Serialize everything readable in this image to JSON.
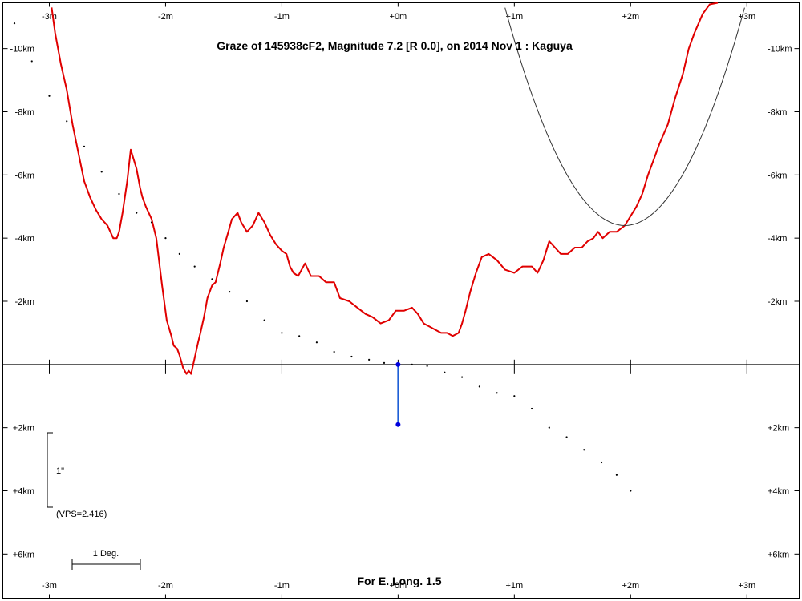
{
  "chart_data": {
    "type": "line",
    "title": "Graze of  145938cF2,  Magnitude 7.2 [R 0.0],  on 2014 Nov  1  :  Kaguya",
    "footer": "For E. Long. 1.5",
    "x_unit": "minutes",
    "y_unit": "km",
    "xlim": [
      -3.4,
      3.45
    ],
    "ylim": [
      -11.45,
      7.4
    ],
    "x_ticks": [
      {
        "value": -3,
        "label": "-3m"
      },
      {
        "value": -2,
        "label": "-2m"
      },
      {
        "value": -1,
        "label": "-1m"
      },
      {
        "value": 0,
        "label": "+0m"
      },
      {
        "value": 1,
        "label": "+1m"
      },
      {
        "value": 2,
        "label": "+2m"
      },
      {
        "value": 3,
        "label": "+3m"
      }
    ],
    "y_ticks": [
      {
        "value": -10,
        "label": "-10km"
      },
      {
        "value": -8,
        "label": "-8km"
      },
      {
        "value": -6,
        "label": "-6km"
      },
      {
        "value": -4,
        "label": "-4km"
      },
      {
        "value": -2,
        "label": "-2km"
      },
      {
        "value": 2,
        "label": "+2km"
      },
      {
        "value": 4,
        "label": "+4km"
      },
      {
        "value": 6,
        "label": "+6km"
      }
    ],
    "scale_bar_vertical_label": "1\"",
    "vps_label": "(VPS=2.416)",
    "scale_bar_horizontal_label": "1 Deg.",
    "series": [
      {
        "kind": "limb-profile",
        "color": "#e00000",
        "x": [
          -2.98,
          -2.95,
          -2.9,
          -2.85,
          -2.8,
          -2.75,
          -2.7,
          -2.65,
          -2.6,
          -2.55,
          -2.5,
          -2.45,
          -2.42,
          -2.4,
          -2.37,
          -2.33,
          -2.3,
          -2.25,
          -2.22,
          -2.2,
          -2.17,
          -2.12,
          -2.08,
          -2.03,
          -1.99,
          -1.95,
          -1.93,
          -1.9,
          -1.88,
          -1.85,
          -1.82,
          -1.8,
          -1.78,
          -1.75,
          -1.72,
          -1.7,
          -1.67,
          -1.64,
          -1.6,
          -1.57,
          -1.53,
          -1.5,
          -1.46,
          -1.43,
          -1.38,
          -1.35,
          -1.3,
          -1.25,
          -1.2,
          -1.15,
          -1.1,
          -1.05,
          -1.0,
          -0.96,
          -0.93,
          -0.9,
          -0.86,
          -0.8,
          -0.75,
          -0.68,
          -0.62,
          -0.55,
          -0.5,
          -0.42,
          -0.35,
          -0.28,
          -0.22,
          -0.15,
          -0.08,
          -0.02,
          0.05,
          0.12,
          0.17,
          0.22,
          0.27,
          0.32,
          0.37,
          0.42,
          0.47,
          0.52,
          0.55,
          0.58,
          0.62,
          0.67,
          0.72,
          0.78,
          0.85,
          0.92,
          1.0,
          1.07,
          1.15,
          1.2,
          1.25,
          1.3,
          1.35,
          1.4,
          1.46,
          1.52,
          1.58,
          1.63,
          1.68,
          1.72,
          1.76,
          1.82,
          1.88,
          1.95,
          2.05,
          2.1,
          2.15,
          2.2,
          2.25,
          2.32,
          2.38,
          2.45,
          2.5,
          2.55,
          2.62,
          2.68,
          2.75
        ],
        "y": [
          -11.3,
          -10.5,
          -9.5,
          -8.7,
          -7.6,
          -6.7,
          -5.8,
          -5.3,
          -4.9,
          -4.6,
          -4.4,
          -4.0,
          -4.0,
          -4.2,
          -4.8,
          -5.8,
          -6.8,
          -6.2,
          -5.6,
          -5.3,
          -5.0,
          -4.6,
          -4.0,
          -2.5,
          -1.4,
          -0.9,
          -0.6,
          -0.5,
          -0.3,
          0.1,
          0.3,
          0.2,
          0.3,
          -0.2,
          -0.7,
          -1.0,
          -1.5,
          -2.1,
          -2.5,
          -2.6,
          -3.2,
          -3.7,
          -4.2,
          -4.6,
          -4.8,
          -4.5,
          -4.2,
          -4.4,
          -4.8,
          -4.5,
          -4.1,
          -3.8,
          -3.6,
          -3.5,
          -3.1,
          -2.9,
          -2.8,
          -3.2,
          -2.8,
          -2.8,
          -2.6,
          -2.6,
          -2.1,
          -2.0,
          -1.8,
          -1.6,
          -1.5,
          -1.3,
          -1.4,
          -1.7,
          -1.7,
          -1.8,
          -1.6,
          -1.3,
          -1.2,
          -1.1,
          -1.0,
          -1.0,
          -0.9,
          -1.0,
          -1.3,
          -1.7,
          -2.3,
          -2.9,
          -3.4,
          -3.5,
          -3.3,
          -3.0,
          -2.9,
          -3.1,
          -3.1,
          -2.9,
          -3.3,
          -3.9,
          -3.7,
          -3.5,
          -3.5,
          -3.7,
          -3.7,
          -3.9,
          -4.0,
          -4.2,
          -4.0,
          -4.2,
          -4.2,
          -4.4,
          -5.0,
          -5.4,
          -6.0,
          -6.5,
          -7.0,
          -7.6,
          -8.4,
          -9.2,
          -10.0,
          -10.5,
          -11.1,
          -11.4,
          -11.45
        ]
      },
      {
        "kind": "mean-limb-dots",
        "color": "#000000",
        "x": [
          -3.3,
          -3.15,
          -3.0,
          -2.85,
          -2.7,
          -2.55,
          -2.4,
          -2.25,
          -2.12,
          -2.0,
          -1.88,
          -1.75,
          -1.6,
          -1.45,
          -1.3,
          -1.15,
          -1.0,
          -0.85,
          -0.7,
          -0.55,
          -0.4,
          -0.25,
          -0.12,
          0.0,
          0.12,
          0.25,
          0.4,
          0.55,
          0.7,
          0.85,
          1.0,
          1.15,
          1.3,
          1.45,
          1.6,
          1.75,
          1.88,
          2.0
        ],
        "y": [
          -10.8,
          -9.6,
          -8.5,
          -7.7,
          -6.9,
          -6.1,
          -5.4,
          -4.8,
          -4.5,
          -4.0,
          -3.5,
          -3.1,
          -2.7,
          -2.3,
          -2.0,
          -1.4,
          -1.0,
          -0.9,
          -0.7,
          -0.4,
          -0.25,
          -0.15,
          -0.05,
          0.0,
          0.0,
          0.05,
          0.25,
          0.4,
          0.7,
          0.9,
          1.0,
          1.4,
          2.0,
          2.3,
          2.7,
          3.1,
          3.5,
          4.0
        ]
      },
      {
        "kind": "curve",
        "color": "#333333",
        "vertex_x": 1.95,
        "vertex_y": -4.4,
        "coefficient": 6.5,
        "x_range": [
          0.88,
          3.4
        ]
      },
      {
        "kind": "marker-segment",
        "color": "#1f5fd6",
        "x": [
          0.0,
          0.0
        ],
        "y": [
          0.0,
          1.9
        ]
      }
    ]
  }
}
